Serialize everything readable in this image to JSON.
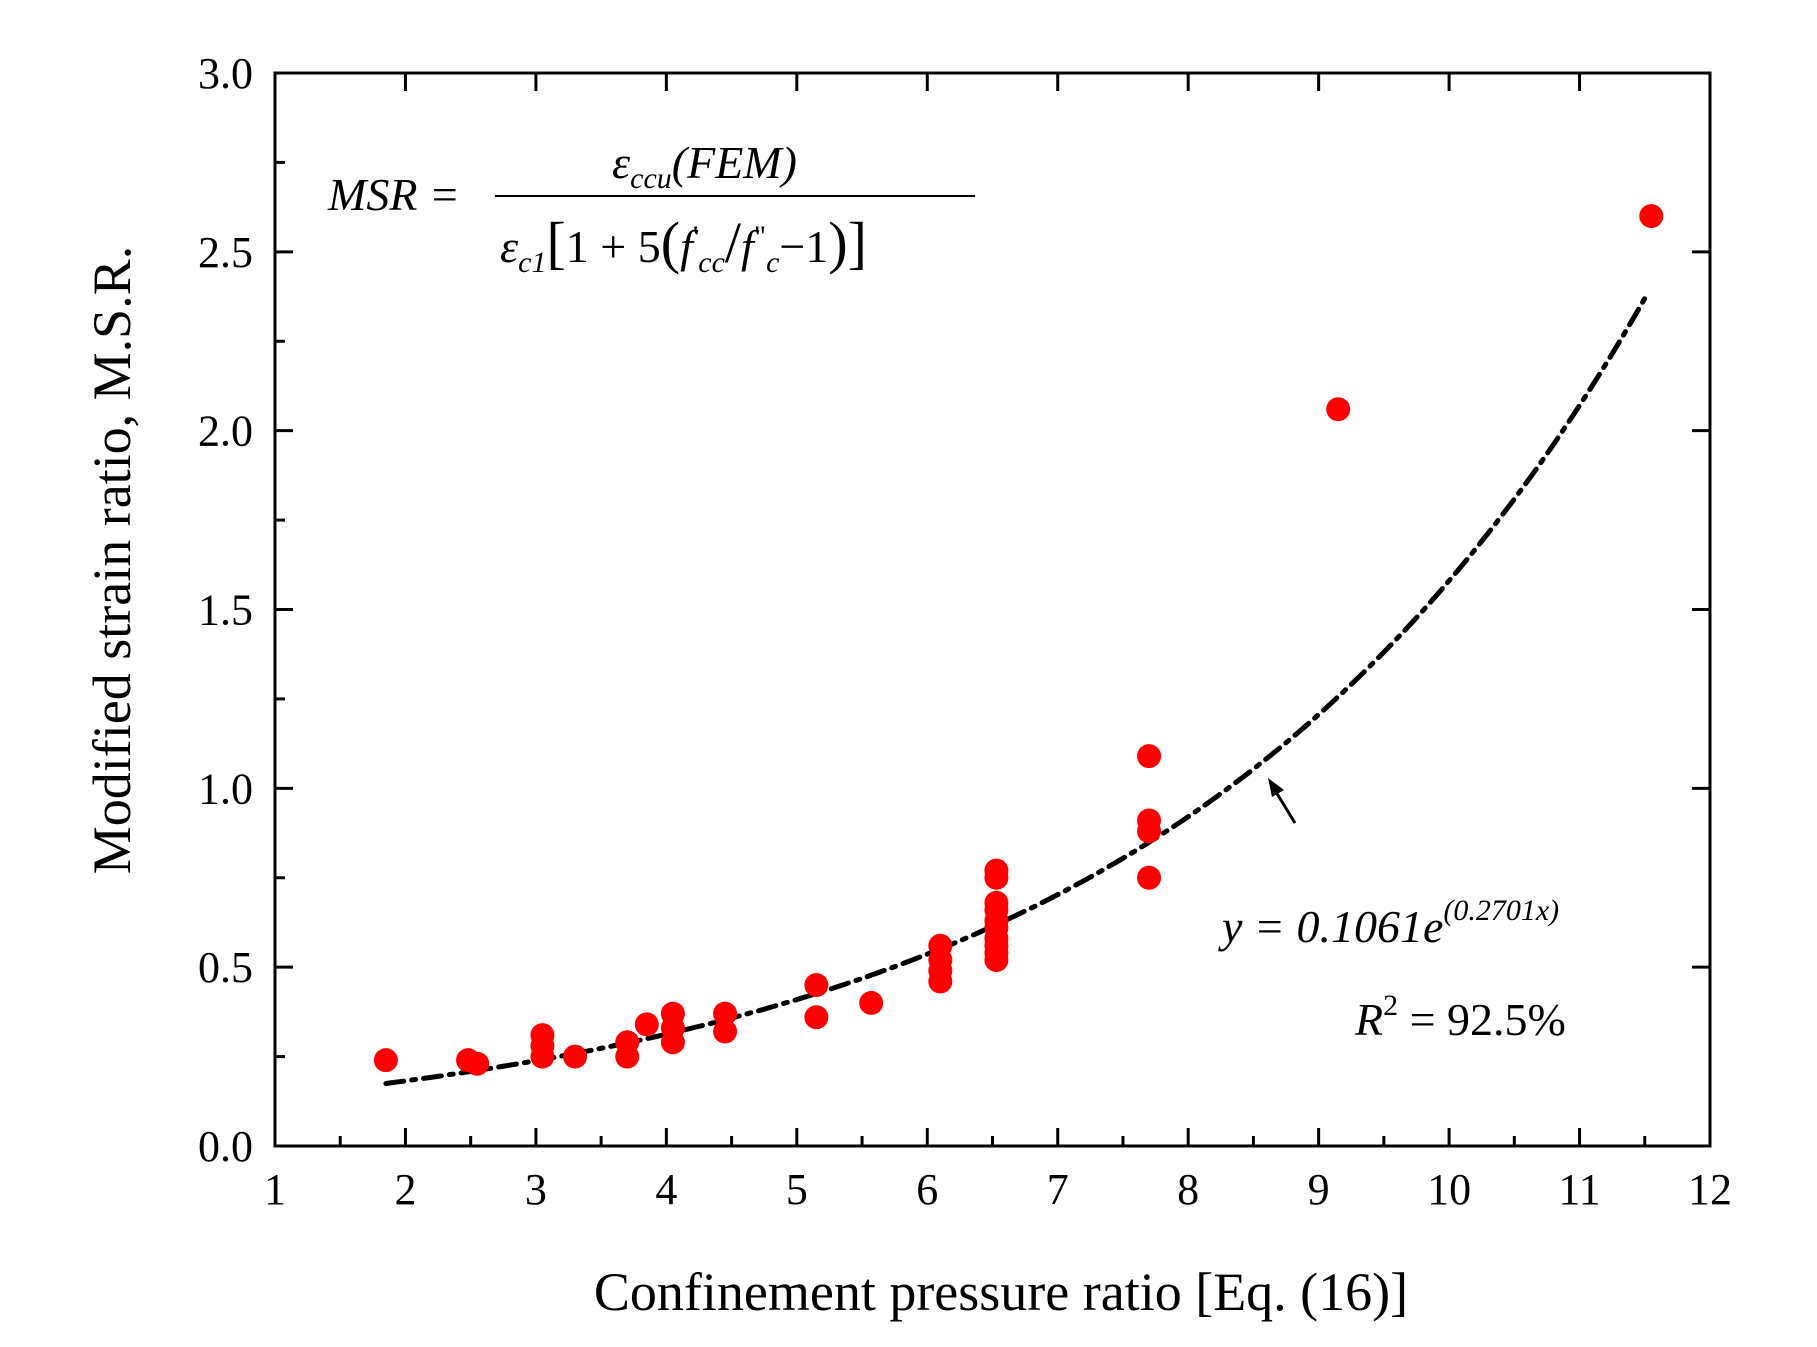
{
  "chart_data": {
    "type": "scatter",
    "xlabel": "Confinement pressure ratio [Eq. (16)]",
    "ylabel": "Modified strain ratio, M.S.R.",
    "xlim": [
      1,
      12
    ],
    "ylim": [
      0.0,
      3.0
    ],
    "x_ticks": [
      "1",
      "2",
      "3",
      "4",
      "5",
      "6",
      "7",
      "8",
      "9",
      "10",
      "11",
      "12"
    ],
    "y_ticks": [
      "0.0",
      "0.5",
      "1.0",
      "1.5",
      "2.0",
      "2.5",
      "3.0"
    ],
    "grid": false,
    "marker_color": "#ff0000",
    "fit_color": "#000000",
    "points": [
      {
        "x": 1.85,
        "y": 0.24
      },
      {
        "x": 2.48,
        "y": 0.24
      },
      {
        "x": 2.55,
        "y": 0.23
      },
      {
        "x": 3.05,
        "y": 0.31
      },
      {
        "x": 3.05,
        "y": 0.28
      },
      {
        "x": 3.05,
        "y": 0.25
      },
      {
        "x": 3.3,
        "y": 0.25
      },
      {
        "x": 3.7,
        "y": 0.29
      },
      {
        "x": 3.7,
        "y": 0.25
      },
      {
        "x": 3.85,
        "y": 0.34
      },
      {
        "x": 4.05,
        "y": 0.37
      },
      {
        "x": 4.05,
        "y": 0.33
      },
      {
        "x": 4.05,
        "y": 0.29
      },
      {
        "x": 4.45,
        "y": 0.37
      },
      {
        "x": 4.45,
        "y": 0.32
      },
      {
        "x": 5.15,
        "y": 0.45
      },
      {
        "x": 5.15,
        "y": 0.36
      },
      {
        "x": 5.57,
        "y": 0.4
      },
      {
        "x": 6.1,
        "y": 0.56
      },
      {
        "x": 6.1,
        "y": 0.52
      },
      {
        "x": 6.1,
        "y": 0.49
      },
      {
        "x": 6.1,
        "y": 0.46
      },
      {
        "x": 6.53,
        "y": 0.77
      },
      {
        "x": 6.53,
        "y": 0.75
      },
      {
        "x": 6.53,
        "y": 0.68
      },
      {
        "x": 6.53,
        "y": 0.66
      },
      {
        "x": 6.53,
        "y": 0.63
      },
      {
        "x": 6.53,
        "y": 0.61
      },
      {
        "x": 6.53,
        "y": 0.58
      },
      {
        "x": 6.53,
        "y": 0.56
      },
      {
        "x": 6.53,
        "y": 0.54
      },
      {
        "x": 6.53,
        "y": 0.52
      },
      {
        "x": 7.7,
        "y": 1.09
      },
      {
        "x": 7.7,
        "y": 0.91
      },
      {
        "x": 7.7,
        "y": 0.88
      },
      {
        "x": 7.7,
        "y": 0.75
      },
      {
        "x": 9.15,
        "y": 2.06
      },
      {
        "x": 11.55,
        "y": 2.6
      }
    ],
    "fit": {
      "a": 0.1061,
      "b": 0.2701,
      "x_range": [
        1.85,
        11.5
      ],
      "equation_prefix": "y = 0.1061e",
      "equation_exponent": "(0.2701x)",
      "r2_label": "R",
      "r2_sup": "2",
      "r2_value": " = 92.5%"
    },
    "formula": {
      "lhs": "MSR =",
      "numerator_symbol": "ε",
      "numerator_sub": "ccu",
      "numerator_rest": "(FEM)",
      "denominator_symbol": "ε",
      "denominator_sub": "c1",
      "denominator_rest_1": "1 + 5",
      "denominator_f1": "f",
      "denominator_f1_sup": "'",
      "denominator_f1_sub": "cc",
      "denominator_f2": "f",
      "denominator_f2_sup": "\"",
      "denominator_f2_sub": "c",
      "denominator_tail": "−1"
    }
  }
}
